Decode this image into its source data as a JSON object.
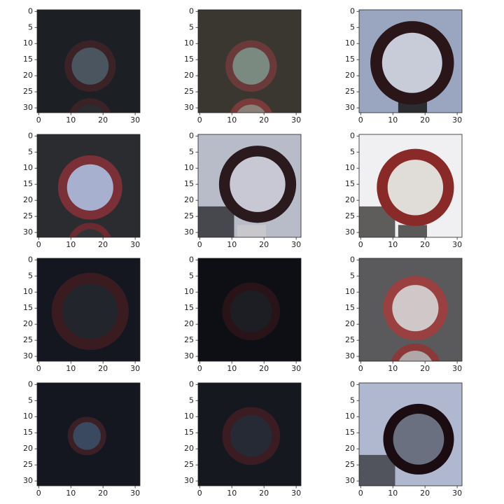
{
  "chart_data": [
    {
      "type": "image",
      "xlim": [
        -0.5,
        31.5
      ],
      "ylim": [
        31.5,
        -0.5
      ],
      "xticks": [
        0,
        10,
        20,
        30
      ],
      "yticks": [
        0,
        5,
        10,
        15,
        20,
        25,
        30
      ]
    },
    {
      "type": "image",
      "xlim": [
        -0.5,
        31.5
      ],
      "ylim": [
        31.5,
        -0.5
      ],
      "xticks": [
        0,
        10,
        20,
        30
      ],
      "yticks": [
        0,
        5,
        10,
        15,
        20,
        25,
        30
      ]
    },
    {
      "type": "image",
      "xlim": [
        -0.5,
        31.5
      ],
      "ylim": [
        31.5,
        -0.5
      ],
      "xticks": [
        0,
        10,
        20,
        30
      ],
      "yticks": [
        0,
        5,
        10,
        15,
        20,
        25,
        30
      ]
    },
    {
      "type": "image",
      "xlim": [
        -0.5,
        31.5
      ],
      "ylim": [
        31.5,
        -0.5
      ],
      "xticks": [
        0,
        10,
        20,
        30
      ],
      "yticks": [
        0,
        5,
        10,
        15,
        20,
        25,
        30
      ]
    },
    {
      "type": "image",
      "xlim": [
        -0.5,
        31.5
      ],
      "ylim": [
        31.5,
        -0.5
      ],
      "xticks": [
        0,
        10,
        20,
        30
      ],
      "yticks": [
        0,
        5,
        10,
        15,
        20,
        25,
        30
      ]
    },
    {
      "type": "image",
      "xlim": [
        -0.5,
        31.5
      ],
      "ylim": [
        31.5,
        -0.5
      ],
      "xticks": [
        0,
        10,
        20,
        30
      ],
      "yticks": [
        0,
        5,
        10,
        15,
        20,
        25,
        30
      ]
    },
    {
      "type": "image",
      "xlim": [
        -0.5,
        31.5
      ],
      "ylim": [
        31.5,
        -0.5
      ],
      "xticks": [
        0,
        10,
        20,
        30
      ],
      "yticks": [
        0,
        5,
        10,
        15,
        20,
        25,
        30
      ]
    },
    {
      "type": "image",
      "xlim": [
        -0.5,
        31.5
      ],
      "ylim": [
        31.5,
        -0.5
      ],
      "xticks": [
        0,
        10,
        20,
        30
      ],
      "yticks": [
        0,
        5,
        10,
        15,
        20,
        25,
        30
      ]
    },
    {
      "type": "image",
      "xlim": [
        -0.5,
        31.5
      ],
      "ylim": [
        31.5,
        -0.5
      ],
      "xticks": [
        0,
        10,
        20,
        30
      ],
      "yticks": [
        0,
        5,
        10,
        15,
        20,
        25,
        30
      ]
    },
    {
      "type": "image",
      "xlim": [
        -0.5,
        31.5
      ],
      "ylim": [
        31.5,
        -0.5
      ],
      "xticks": [
        0,
        10,
        20,
        30
      ],
      "yticks": [
        0,
        5,
        10,
        15,
        20,
        25,
        30
      ]
    },
    {
      "type": "image",
      "xlim": [
        -0.5,
        31.5
      ],
      "ylim": [
        31.5,
        -0.5
      ],
      "xticks": [
        0,
        10,
        20,
        30
      ],
      "yticks": [
        0,
        5,
        10,
        15,
        20,
        25,
        30
      ]
    },
    {
      "type": "image",
      "xlim": [
        -0.5,
        31.5
      ],
      "ylim": [
        31.5,
        -0.5
      ],
      "xticks": [
        0,
        10,
        20,
        30
      ],
      "yticks": [
        0,
        5,
        10,
        15,
        20,
        25,
        30
      ]
    }
  ]
}
